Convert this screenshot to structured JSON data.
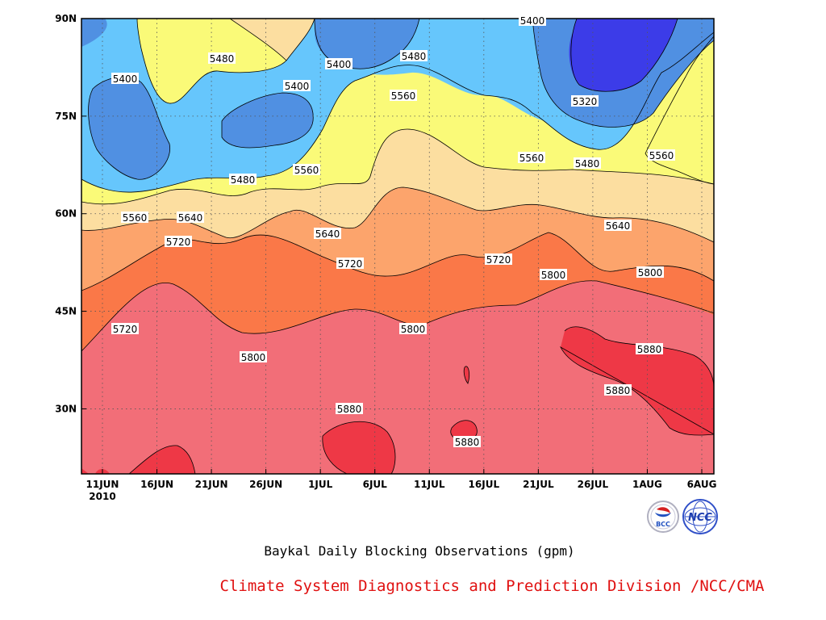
{
  "chart_data": {
    "type": "contour",
    "title": "Baykal Daily Blocking Observations (gpm)",
    "credit": "Climate System Diagnostics and Prediction Division /NCC/CMA",
    "x_ticks": [
      "11JUN",
      "16JUN",
      "21JUN",
      "26JUN",
      "1JUL",
      "6JUL",
      "11JUL",
      "16JUL",
      "21JUL",
      "26JUL",
      "1AUG",
      "6AUG"
    ],
    "x_year": "2010",
    "y_ticks": [
      "90N",
      "75N",
      "60N",
      "45N",
      "30N"
    ],
    "ylim": [
      20,
      90
    ],
    "contour_levels": [
      5320,
      5400,
      5480,
      5560,
      5640,
      5720,
      5800,
      5880
    ],
    "band_colors": {
      "below_5320": "#3c3ce8",
      "5320_5400": "#5090e2",
      "5400_5480": "#66c6fc",
      "5480_5560": "#fafa78",
      "5560_5640": "#fcdea0",
      "5640_5720": "#fca46c",
      "5720_5800": "#fa7848",
      "5800_5880": "#f26e78",
      "above_5880": "#ee3846"
    },
    "contour_labels": [
      "5400",
      "5480",
      "5400",
      "5400",
      "5480",
      "5400",
      "5560",
      "5320",
      "5480",
      "5560",
      "5560",
      "5480",
      "5560",
      "5560",
      "5640",
      "5640",
      "5640",
      "5720",
      "5720",
      "5720",
      "5800",
      "5720",
      "5800",
      "5800",
      "5800",
      "5880",
      "5880",
      "5880",
      "5880"
    ],
    "grid": true,
    "logos": [
      "BCC",
      "NCC"
    ]
  },
  "colors": {
    "credit": "#e01010",
    "grid": "#555555"
  }
}
